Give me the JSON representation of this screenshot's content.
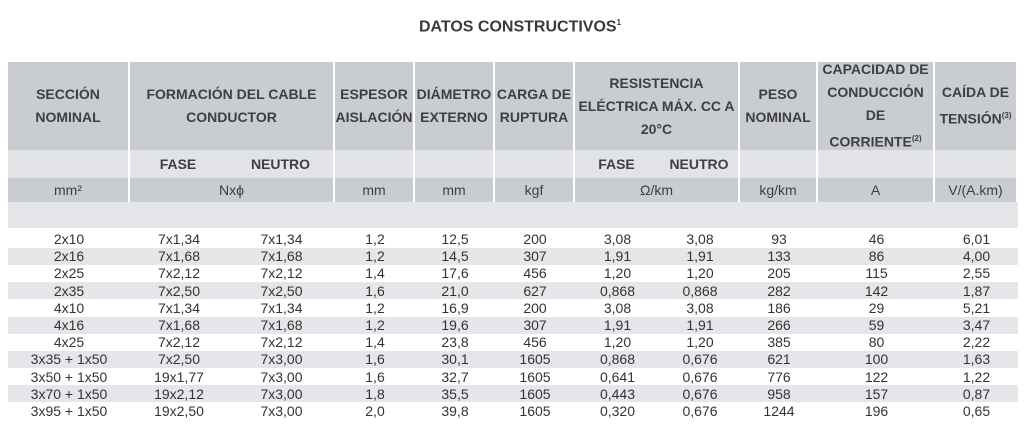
{
  "title": {
    "text": "DATOS CONSTRUCTIVOS",
    "note": "1"
  },
  "headers": [
    {
      "text": "SECCIÓN\nNOMINAL"
    },
    {
      "text": "FORMACIÓN DEL CABLE\nCONDUCTOR"
    },
    {
      "text": "ESPESOR\nAISLACIÓN"
    },
    {
      "text": "DIÁMETRO\nEXTERNO"
    },
    {
      "text": "CARGA DE\nRUPTURA"
    },
    {
      "text": "RESISTENCIA\nELÉCTRICA MÁX. CC A\n20°C"
    },
    {
      "text": "PESO\nNOMINAL"
    },
    {
      "text": "CAPACIDAD DE\nCONDUCCIÓN DE\nCORRIENTE",
      "note": "(2)"
    },
    {
      "text": "CAÍDA DE\nTENSIÓN",
      "note": "(3)"
    }
  ],
  "subheaders": [
    "FASE",
    "NEUTRO",
    "FASE",
    "NEUTRO"
  ],
  "units": [
    "mm²",
    "Nxϕ",
    "mm",
    "mm",
    "kgf",
    "Ω/km",
    "kg/km",
    "A",
    "V/(A.km)"
  ],
  "table": {
    "rows": [
      [
        "2x10",
        "7x1,34",
        "7x1,34",
        "1,2",
        "12,5",
        "200",
        "3,08",
        "3,08",
        "93",
        "46",
        "6,01"
      ],
      [
        "2x16",
        "7x1,68",
        "7x1,68",
        "1,2",
        "14,5",
        "307",
        "1,91",
        "1,91",
        "133",
        "86",
        "4,00"
      ],
      [
        "2x25",
        "7x2,12",
        "7x2,12",
        "1,4",
        "17,6",
        "456",
        "1,20",
        "1,20",
        "205",
        "115",
        "2,55"
      ],
      [
        "2x35",
        "7x2,50",
        "7x2,50",
        "1,6",
        "21,0",
        "627",
        "0,868",
        "0,868",
        "282",
        "142",
        "1,87"
      ],
      [
        "4x10",
        "7x1,34",
        "7x1,34",
        "1,2",
        "16,9",
        "200",
        "3,08",
        "3,08",
        "186",
        "29",
        "5,21"
      ],
      [
        "4x16",
        "7x1,68",
        "7x1,68",
        "1,2",
        "19,6",
        "307",
        "1,91",
        "1,91",
        "266",
        "59",
        "3,47"
      ],
      [
        "4x25",
        "7x2,12",
        "7x2,12",
        "1,4",
        "23,8",
        "456",
        "1,20",
        "1,20",
        "385",
        "80",
        "2,22"
      ],
      [
        "3x35 + 1x50",
        "7x2,50",
        "7x3,00",
        "1,6",
        "30,1",
        "1605",
        "0,868",
        "0,676",
        "621",
        "100",
        "1,63"
      ],
      [
        "3x50 + 1x50",
        "19x1,77",
        "7x3,00",
        "1,6",
        "32,7",
        "1605",
        "0,641",
        "0,676",
        "776",
        "122",
        "1,22"
      ],
      [
        "3x70 + 1x50",
        "19x2,12",
        "7x3,00",
        "1,8",
        "35,5",
        "1605",
        "0,443",
        "0,676",
        "958",
        "157",
        "0,87"
      ],
      [
        "3x95 + 1x50",
        "19x2,50",
        "7x3,00",
        "2,0",
        "39,8",
        "1605",
        "0,320",
        "0,676",
        "1244",
        "196",
        "0,65"
      ]
    ]
  }
}
